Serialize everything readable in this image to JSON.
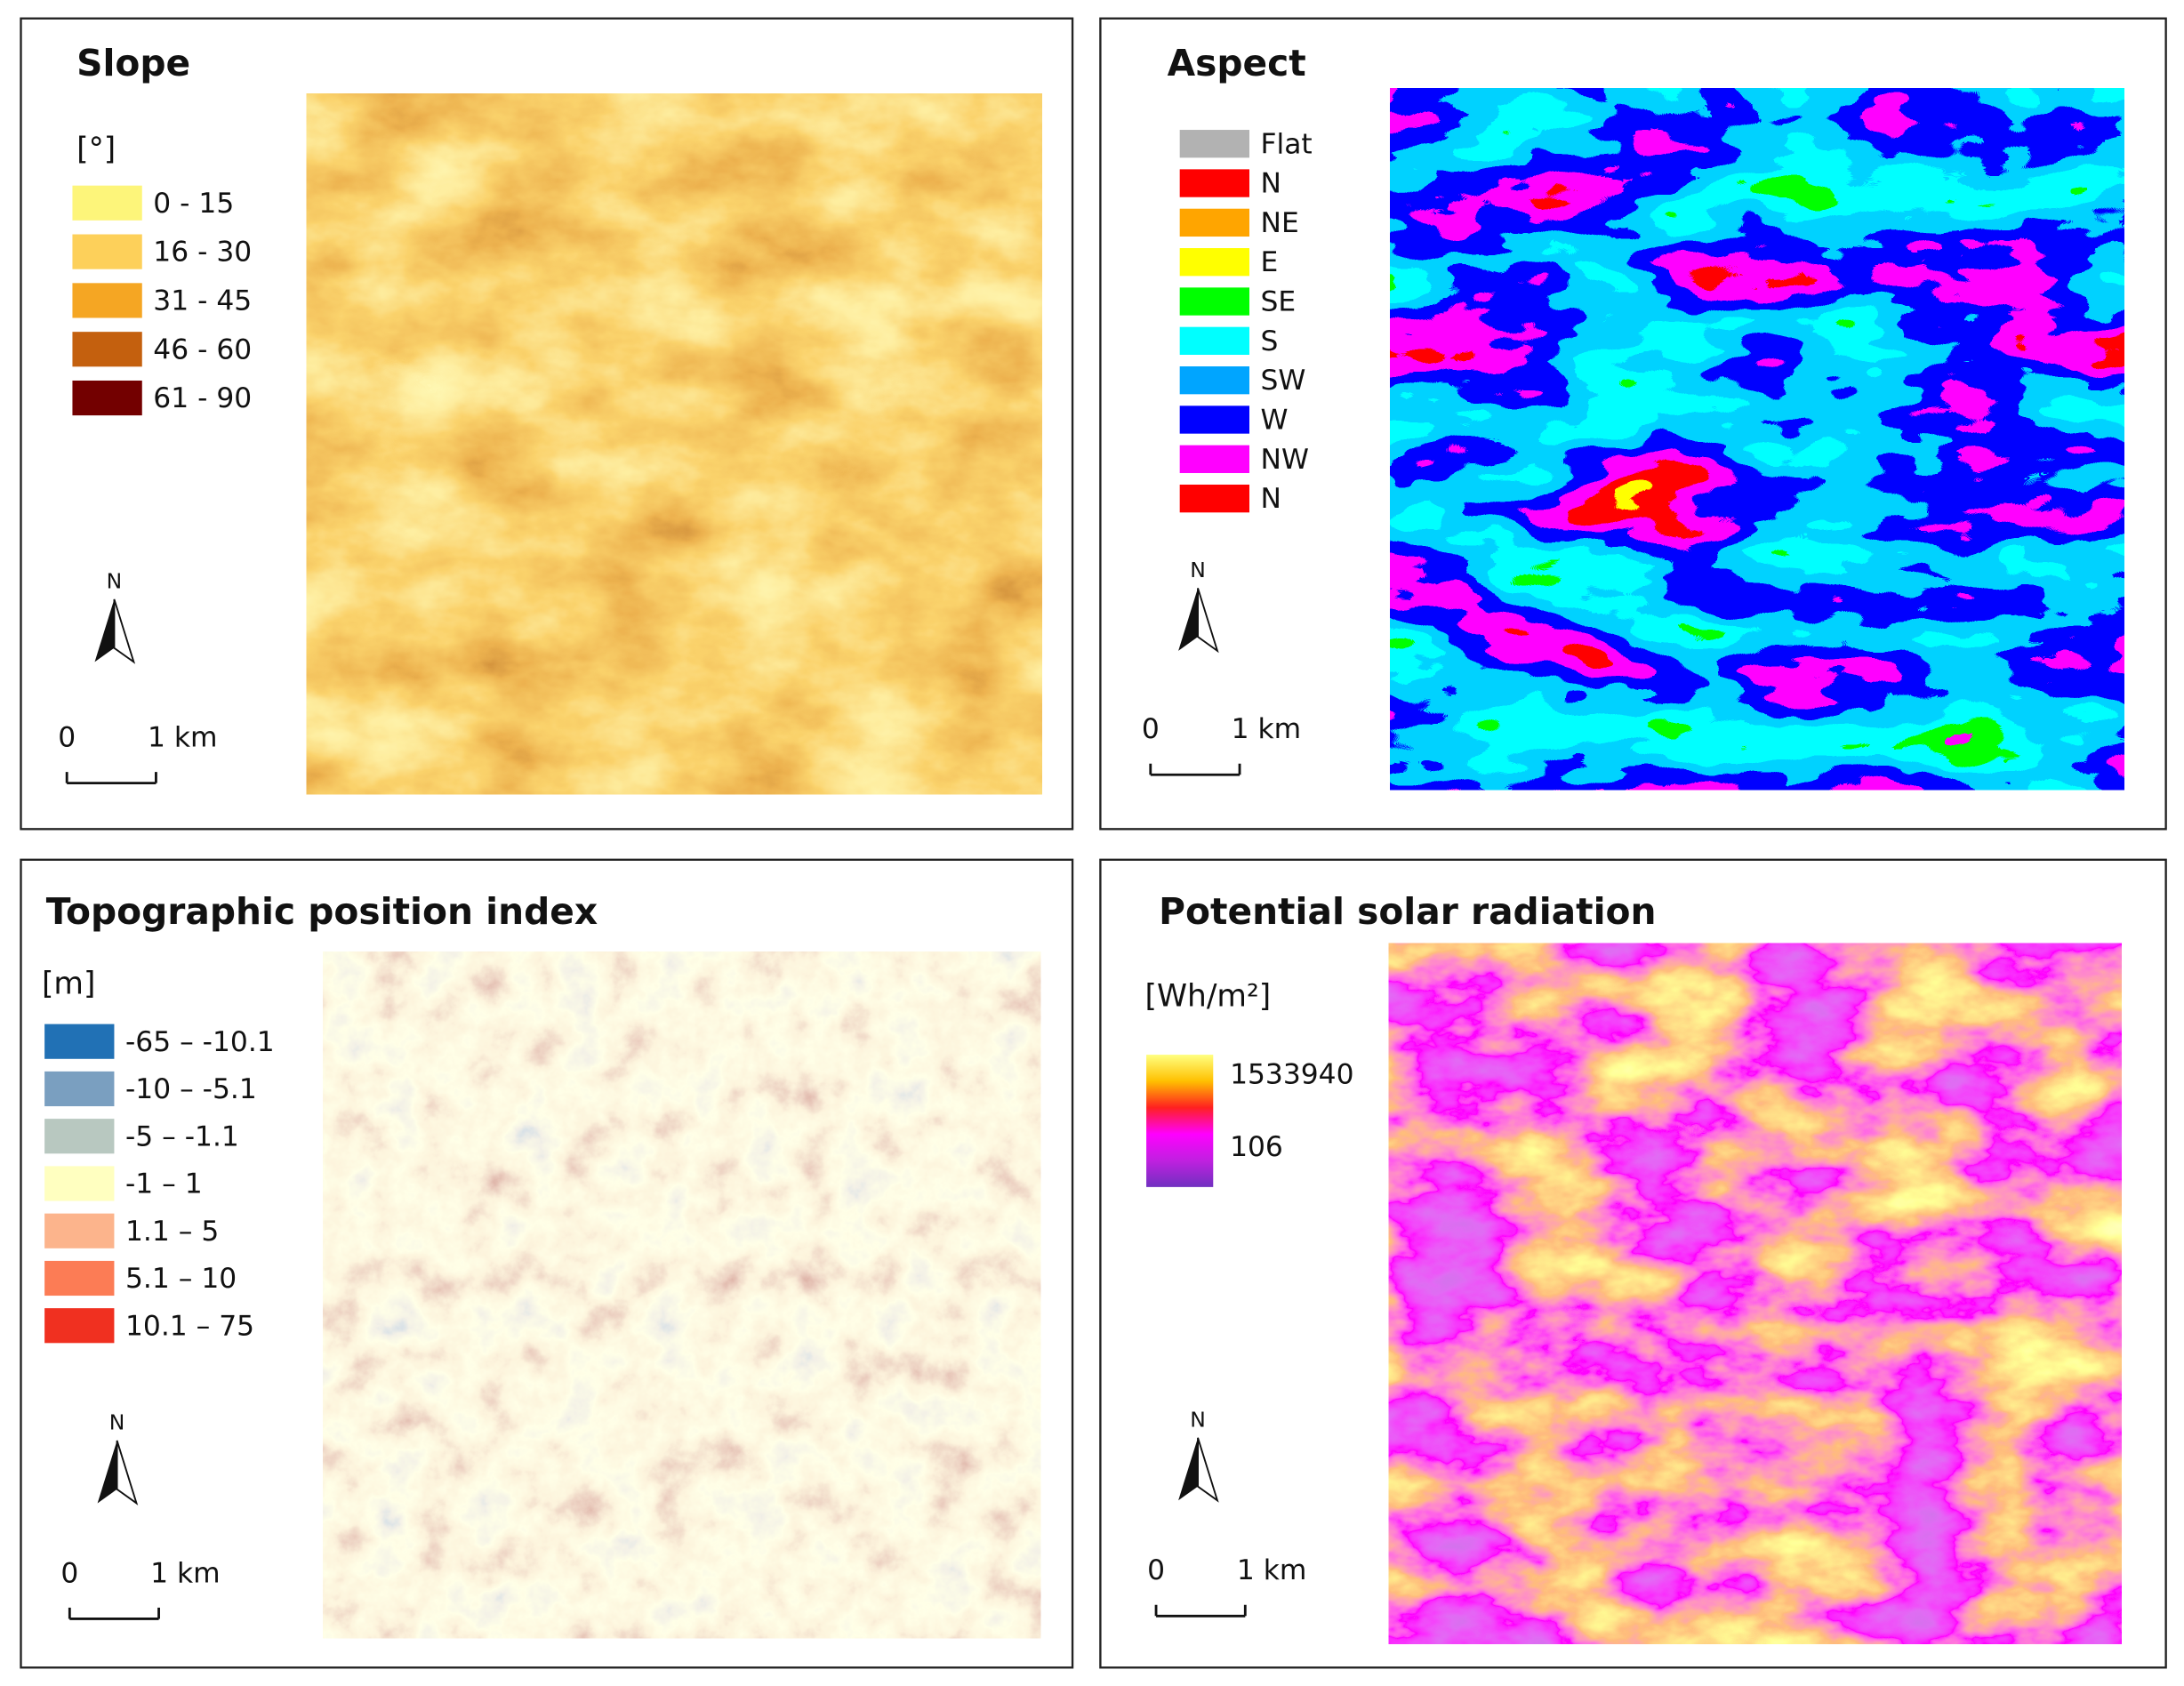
{
  "panels": [
    {
      "title": "Slope",
      "unit": "[°]",
      "legend": [
        {
          "label": "0 - 15",
          "color": "#fdf57a"
        },
        {
          "label": "16 - 30",
          "color": "#fdd05a"
        },
        {
          "label": "31 - 45",
          "color": "#f5a623"
        },
        {
          "label": "46 - 60",
          "color": "#c4600e"
        },
        {
          "label": "61 - 90",
          "color": "#730000"
        }
      ],
      "north": "N",
      "scale": [
        "0",
        "1 km"
      ]
    },
    {
      "title": "Aspect",
      "legend": [
        {
          "label": "Flat",
          "color": "#b2b2b2"
        },
        {
          "label": "N",
          "color": "#ff0000"
        },
        {
          "label": "NE",
          "color": "#ffa500"
        },
        {
          "label": "E",
          "color": "#ffff00"
        },
        {
          "label": "SE",
          "color": "#00ff00"
        },
        {
          "label": "S",
          "color": "#00ffff"
        },
        {
          "label": "SW",
          "color": "#00a5ff"
        },
        {
          "label": "W",
          "color": "#0000ff"
        },
        {
          "label": "NW",
          "color": "#ff00ff"
        },
        {
          "label": "N",
          "color": "#ff0000"
        }
      ],
      "north": "N",
      "scale": [
        "0",
        "1 km"
      ]
    },
    {
      "title": "Topographic position index",
      "unit": "[m]",
      "legend": [
        {
          "label": "-65 – -10.1",
          "color": "#2171b5"
        },
        {
          "label": "-10 – -5.1",
          "color": "#7a9fc0"
        },
        {
          "label": "-5 – -1.1",
          "color": "#b8c8c0"
        },
        {
          "label": "-1 – 1",
          "color": "#ffffc0"
        },
        {
          "label": "1.1 – 5",
          "color": "#fcb48c"
        },
        {
          "label": "5.1 – 10",
          "color": "#fc7c55"
        },
        {
          "label": "10.1 – 75",
          "color": "#f03020"
        }
      ],
      "north": "N",
      "scale": [
        "0",
        "1 km"
      ]
    },
    {
      "title": "Potential solar radiation",
      "unit": "[Wh/m²]",
      "gradient": {
        "colors": [
          "#ffff80",
          "#ffc000",
          "#ff2020",
          "#ff00ff",
          "#c020e0",
          "#7030c0"
        ],
        "labels": [
          "1533940",
          "106"
        ]
      },
      "north": "N",
      "scale": [
        "0",
        "1 km"
      ]
    }
  ]
}
